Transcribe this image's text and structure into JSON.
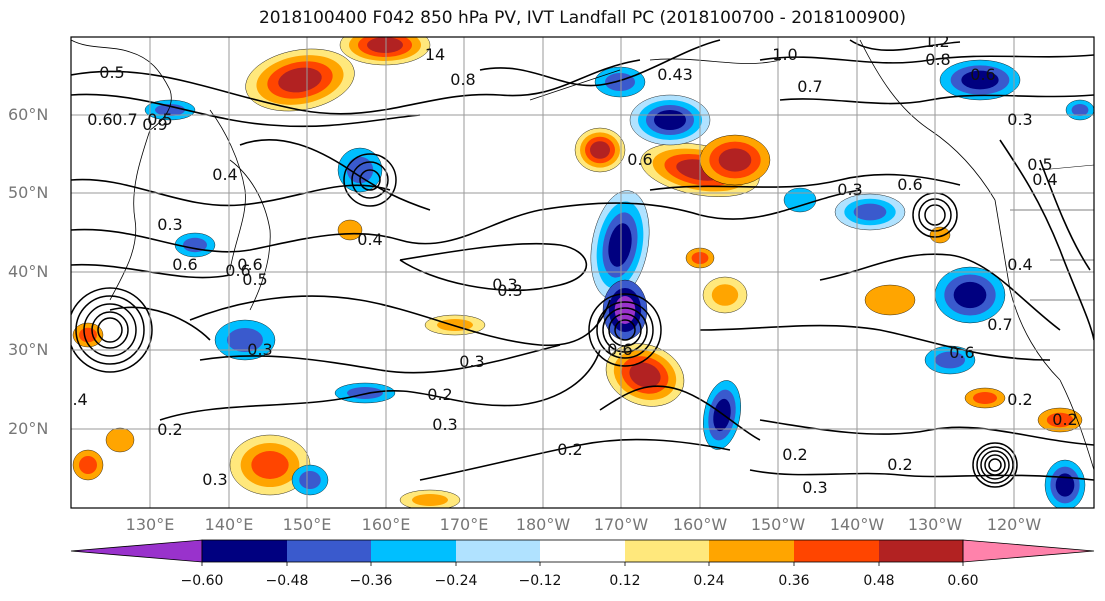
{
  "title": "2018100400 F042 850 hPa PV, IVT Landfall PC (2018100700 - 2018100900)",
  "colors": {
    "frame": "#000000",
    "grid": "#9a9a9a",
    "contour": "#000000",
    "coast": "#000000",
    "neg5": "#9932cc",
    "neg4": "#000080",
    "neg3": "#3a5acd",
    "neg2": "#00bfff",
    "neg1": "#b0e2ff",
    "pos1": "#ffe87c",
    "pos2": "#ffa500",
    "pos3": "#ff4500",
    "pos4": "#b22222",
    "pos5": "#ff82ab"
  },
  "lat_labels": [
    "60°N",
    "50°N",
    "40°N",
    "30°N",
    "20°N"
  ],
  "lon_labels": [
    "130°E",
    "140°E",
    "150°E",
    "160°E",
    "170°E",
    "180°W",
    "170°W",
    "160°W",
    "150°W",
    "140°W",
    "130°W",
    "120°W"
  ],
  "colorbar": {
    "ticks": [
      "−0.60",
      "−0.48",
      "−0.36",
      "−0.24",
      "−0.12",
      "0.12",
      "0.24",
      "0.36",
      "0.48",
      "0.60"
    ]
  },
  "contour_labels": [
    "0.5",
    "0.6",
    "0.7",
    "0.9",
    "0.5",
    "0.3",
    "0.4",
    "0.6",
    "0.5",
    "0.6",
    "0.4",
    "0.6",
    "0.8",
    "0.3",
    "0.3",
    "0.3",
    "0.2",
    "0.2",
    "0.2",
    "0.2",
    "0.3",
    "0.6",
    "0.6",
    "0.7",
    "0.8",
    "1.2",
    "1.0",
    "0.6",
    "0.5",
    "0.4",
    "0.3",
    "0.2",
    "0.3",
    "0.2",
    "0.3",
    "0.2",
    "0.4",
    "0.7",
    "0.6",
    "0.4",
    "0.3",
    "14",
    "0.43",
    "0.6",
    "0.3"
  ]
}
